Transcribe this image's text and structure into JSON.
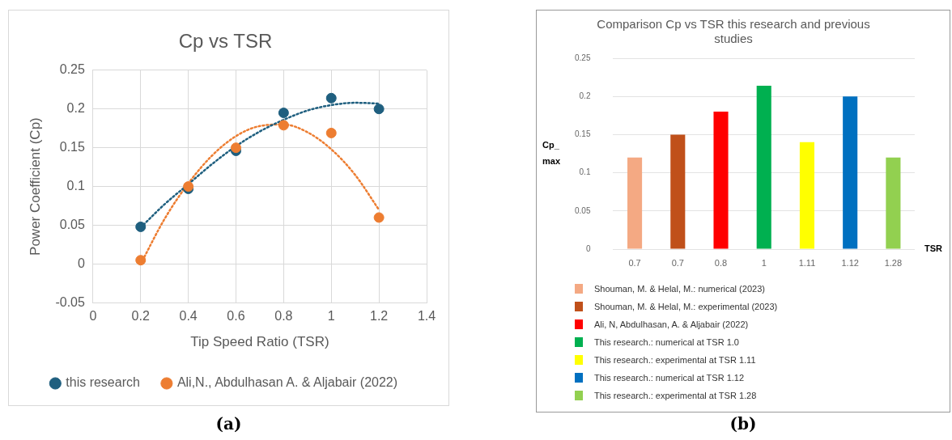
{
  "chart_data": [
    {
      "type": "scatter",
      "title": "Cp vs TSR",
      "xlabel": "Tip Speed Ratio (TSR)",
      "ylabel": "Power Coefficient (Cp)",
      "xlim": [
        0,
        1.4
      ],
      "xticks": [
        0,
        0.2,
        0.4,
        0.6,
        0.8,
        1,
        1.2,
        1.4
      ],
      "ylim": [
        -0.05,
        0.25
      ],
      "yticks": [
        -0.05,
        0,
        0.05,
        0.1,
        0.15,
        0.2,
        0.25
      ],
      "grid": true,
      "legend": "bottom",
      "marker": "circle",
      "annotations": [
        "(a)"
      ],
      "series": [
        {
          "name": "this research",
          "color": "#1f5f7f",
          "x": [
            0.2,
            0.4,
            0.6,
            0.8,
            1,
            1.2
          ],
          "values": [
            0.048,
            0.097,
            0.146,
            0.195,
            0.214,
            0.2
          ]
        },
        {
          "name": "Ali,N., Abdulhasan A. & Aljabair (2022)",
          "color": "#ed7d31",
          "x": [
            0.2,
            0.4,
            0.6,
            0.8,
            1,
            1.2
          ],
          "values": [
            0.005,
            0.1,
            0.15,
            0.179,
            0.169,
            0.06
          ]
        },
        {
          "type": "line",
          "color": "#1f5f7f",
          "line_style": "dotted",
          "marker": "none",
          "x": [
            0.2,
            0.3,
            0.4,
            0.5,
            0.6,
            0.7,
            0.8,
            0.9,
            1,
            1.1,
            1.2
          ],
          "values": [
            0.047,
            0.077,
            0.103,
            0.129,
            0.152,
            0.171,
            0.186,
            0.198,
            0.205,
            0.208,
            0.207
          ]
        },
        {
          "type": "line",
          "color": "#ed7d31",
          "line_style": "dotted",
          "marker": "none",
          "x": [
            0.2,
            0.3,
            0.4,
            0.5,
            0.6,
            0.7,
            0.8,
            0.9,
            1,
            1.1,
            1.2
          ],
          "values": [
            0,
            0.058,
            0.104,
            0.14,
            0.165,
            0.178,
            0.18,
            0.17,
            0.148,
            0.115,
            0.07
          ]
        }
      ]
    },
    {
      "type": "bar",
      "title": "Comparison Cp vs TSR this research and previous studies",
      "xlabel": "TSR",
      "ylabel": "Cp_ max",
      "categories": [
        "0.7",
        "0.7",
        "0.8",
        "1",
        "1.11",
        "1.12",
        "1.28"
      ],
      "ylim": [
        0,
        0.25
      ],
      "yticks": [
        0,
        0.05,
        0.1,
        0.15,
        0.2,
        0.25
      ],
      "grid": "y",
      "legend": "bottom",
      "annotations": [
        "(b)"
      ],
      "series": [
        {
          "name": "Shouman, M. & Helal, M.: numerical (2023)",
          "color": "#f4a983",
          "values": [
            0.12,
            null,
            null,
            null,
            null,
            null,
            null
          ]
        },
        {
          "name": "Shouman, M. & Helal, M.: experimental (2023)",
          "color": "#c0501a",
          "values": [
            null,
            0.15,
            null,
            null,
            null,
            null,
            null
          ]
        },
        {
          "name": "Ali, N, Abdulhasan, A. & Aljabair (2022)",
          "color": "#ff0000",
          "values": [
            null,
            null,
            0.18,
            null,
            null,
            null,
            null
          ]
        },
        {
          "name": "This research.: numerical at TSR 1.0",
          "color": "#00b050",
          "values": [
            null,
            null,
            null,
            0.214,
            null,
            null,
            null
          ]
        },
        {
          "name": "This research.: experimental at TSR 1.11",
          "color": "#ffff00",
          "values": [
            null,
            null,
            null,
            null,
            0.14,
            null,
            null
          ]
        },
        {
          "name": "This research.: numerical at TSR 1.12",
          "color": "#0070c0",
          "values": [
            null,
            null,
            null,
            null,
            null,
            0.2,
            null
          ]
        },
        {
          "name": "This research.: experimental at TSR 1.28",
          "color": "#92d050",
          "values": [
            null,
            null,
            null,
            null,
            null,
            null,
            0.12
          ]
        }
      ]
    }
  ]
}
